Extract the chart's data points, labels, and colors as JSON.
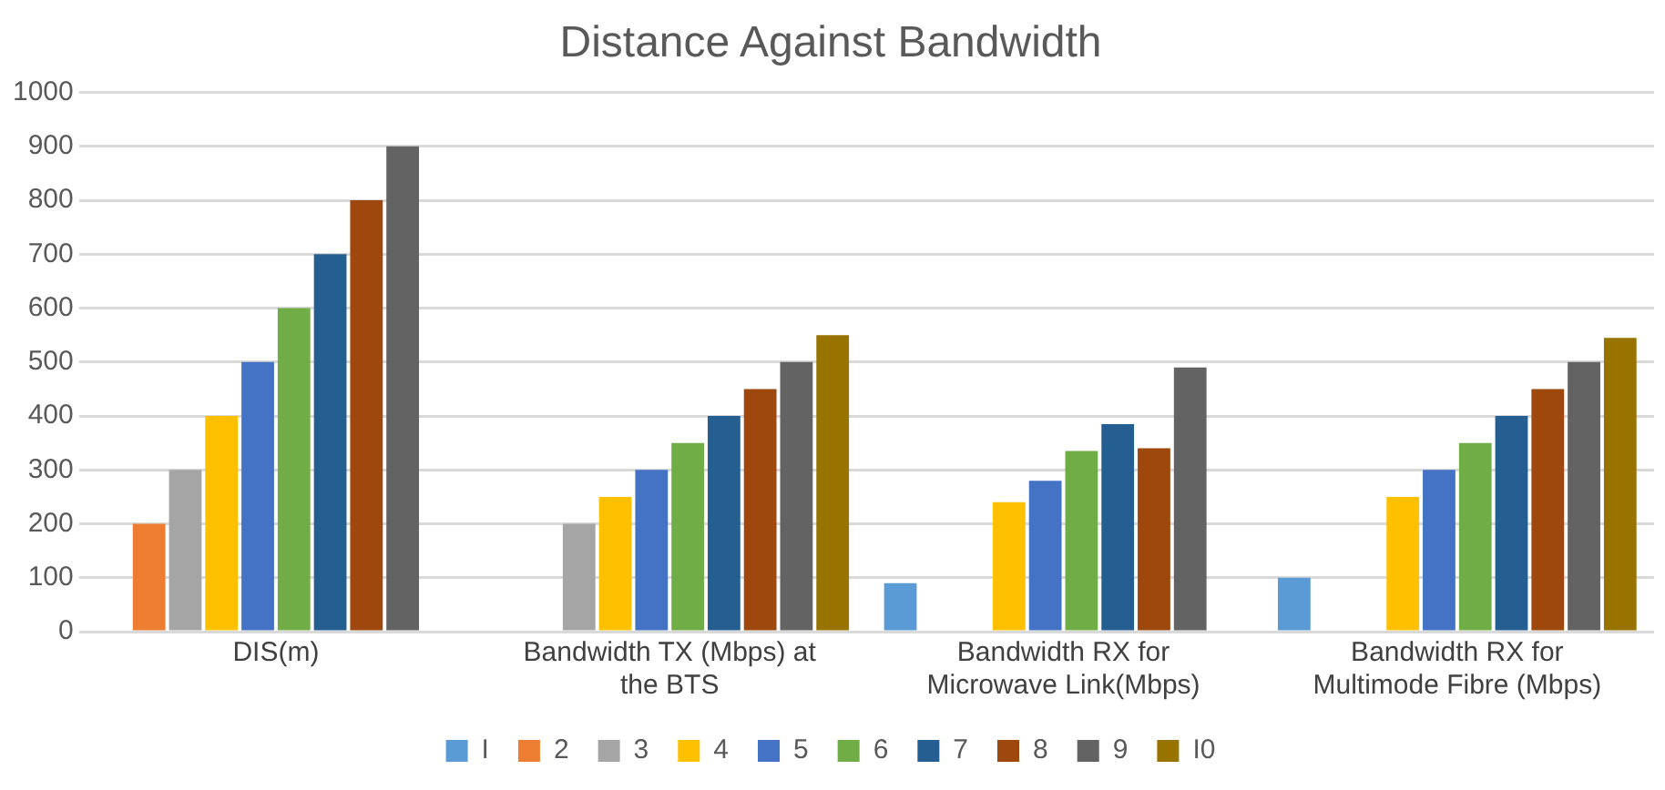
{
  "chart_data": {
    "type": "bar",
    "title": "Distance Against Bandwidth",
    "categories": [
      "DIS(m)",
      "Bandwidth TX (Mbps) at the BTS",
      "Bandwidth RX for Microwave Link(Mbps)",
      "Bandwidth RX for Multimode Fibre (Mbps)"
    ],
    "series": [
      {
        "name": "I",
        "color": "#5b9bd5",
        "values": [
          null,
          null,
          90,
          100
        ]
      },
      {
        "name": "2",
        "color": "#ed7d31",
        "values": [
          200,
          null,
          null,
          null
        ]
      },
      {
        "name": "3",
        "color": "#a5a5a5",
        "values": [
          300,
          200,
          null,
          null
        ]
      },
      {
        "name": "4",
        "color": "#ffc000",
        "values": [
          400,
          250,
          240,
          250
        ]
      },
      {
        "name": "5",
        "color": "#4472c4",
        "values": [
          500,
          300,
          280,
          300
        ]
      },
      {
        "name": "6",
        "color": "#70ad47",
        "values": [
          600,
          350,
          335,
          350
        ]
      },
      {
        "name": "7",
        "color": "#255e91",
        "values": [
          700,
          400,
          385,
          400
        ]
      },
      {
        "name": "8",
        "color": "#9e480e",
        "values": [
          800,
          450,
          340,
          450
        ]
      },
      {
        "name": "9",
        "color": "#636363",
        "values": [
          900,
          500,
          490,
          500
        ]
      },
      {
        "name": "I0",
        "color": "#997300",
        "values": [
          null,
          550,
          null,
          545
        ]
      }
    ],
    "ylim": [
      0,
      1000
    ],
    "yticks": [
      0,
      100,
      200,
      300,
      400,
      500,
      600,
      700,
      800,
      900,
      1000
    ],
    "grid": "y",
    "legend": "bottom"
  }
}
